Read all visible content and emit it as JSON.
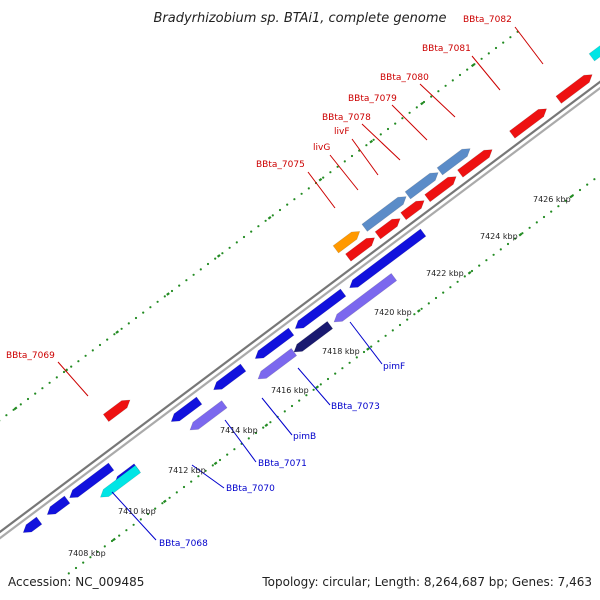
{
  "title": "Bradyrhizobium sp. BTAi1, complete genome",
  "footer": {
    "accession": "Accession: NC_009485",
    "summary": "Topology: circular; Length: 8,264,687 bp; Genes: 7,463"
  },
  "colors": {
    "background": "#ffffff",
    "backbone": "#888888",
    "tick_dots": "#228b22",
    "forward_gene": "#ee1111",
    "forward_label": "#cc0000",
    "reverse_gene": "#1111dd",
    "reverse_label": "#0000cc",
    "operon_blue": "#5b8cc8",
    "operon_purple": "#7b68ee",
    "cyan": "#00e5e5",
    "orange": "#ff9900"
  },
  "ticks": [
    {
      "label": "7408 kbp"
    },
    {
      "label": "7410 kbp"
    },
    {
      "label": "7412 kbp"
    },
    {
      "label": "7414 kbp"
    },
    {
      "label": "7416 kbp"
    },
    {
      "label": "7418 kbp"
    },
    {
      "label": "7420 kbp"
    },
    {
      "label": "7422 kbp"
    },
    {
      "label": "7424 kbp"
    },
    {
      "label": "7426 kbp"
    }
  ],
  "forward_labels": [
    "BBta_7069",
    "BBta_7075",
    "livG",
    "livF",
    "BBta_7078",
    "BBta_7079",
    "BBta_7080",
    "BBta_7081",
    "BBta_7082"
  ],
  "reverse_labels": [
    "BBta_7068",
    "BBta_7070",
    "BBta_7071",
    "pimB",
    "BBta_7073",
    "pimF"
  ]
}
